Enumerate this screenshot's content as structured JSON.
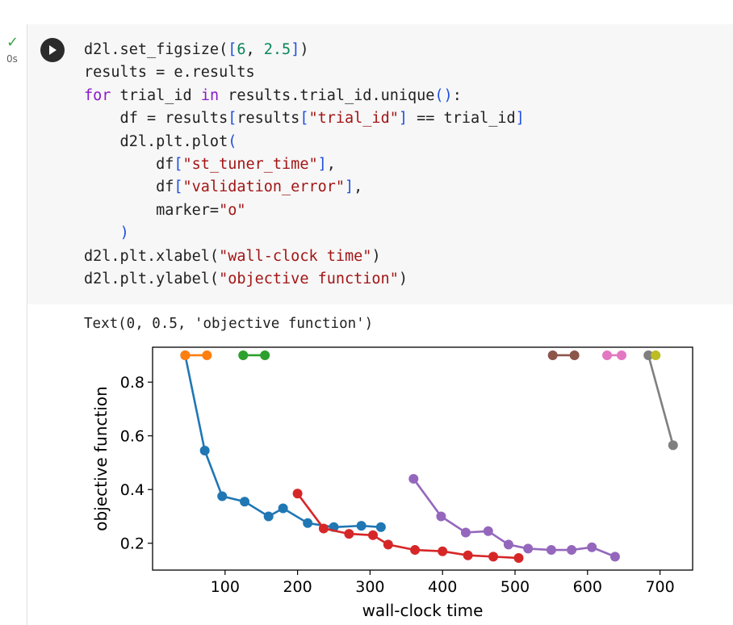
{
  "cell": {
    "status_icon": "check-icon",
    "exec_time": "0s",
    "run_icon": "play-icon",
    "code_lines": [
      [
        {
          "t": "d2l.set_figsize("
        },
        {
          "t": "[",
          "c": "br"
        },
        {
          "t": "6",
          "c": "num"
        },
        {
          "t": ", "
        },
        {
          "t": "2.5",
          "c": "num"
        },
        {
          "t": "]",
          "c": "br"
        },
        {
          "t": ")"
        }
      ],
      [
        {
          "t": "results = e.results"
        }
      ],
      [
        {
          "t": "for",
          "c": "kw"
        },
        {
          "t": " trial_id "
        },
        {
          "t": "in",
          "c": "kw"
        },
        {
          "t": " results.trial_id.unique"
        },
        {
          "t": "()",
          "c": "br"
        },
        {
          "t": ":"
        }
      ],
      [
        {
          "t": "    df = results"
        },
        {
          "t": "[",
          "c": "br"
        },
        {
          "t": "results"
        },
        {
          "t": "[",
          "c": "br"
        },
        {
          "t": "\"trial_id\"",
          "c": "str"
        },
        {
          "t": "]",
          "c": "br"
        },
        {
          "t": " == trial_id"
        },
        {
          "t": "]",
          "c": "br"
        }
      ],
      [
        {
          "t": "    d2l.plt.plot"
        },
        {
          "t": "(",
          "c": "br"
        }
      ],
      [
        {
          "t": "        df"
        },
        {
          "t": "[",
          "c": "br"
        },
        {
          "t": "\"st_tuner_time\"",
          "c": "str"
        },
        {
          "t": "]",
          "c": "br"
        },
        {
          "t": ","
        }
      ],
      [
        {
          "t": "        df"
        },
        {
          "t": "[",
          "c": "br"
        },
        {
          "t": "\"validation_error\"",
          "c": "str"
        },
        {
          "t": "]",
          "c": "br"
        },
        {
          "t": ","
        }
      ],
      [
        {
          "t": "        marker="
        },
        {
          "t": "\"o\"",
          "c": "str"
        }
      ],
      [
        {
          "t": "    "
        },
        {
          "t": ")",
          "c": "br"
        }
      ],
      [
        {
          "t": "d2l.plt.xlabel("
        },
        {
          "t": "\"wall-clock time\"",
          "c": "str"
        },
        {
          "t": ")"
        }
      ],
      [
        {
          "t": "d2l.plt.ylabel("
        },
        {
          "t": "\"objective function\"",
          "c": "str"
        },
        {
          "t": ")"
        }
      ]
    ],
    "output_text": "Text(0, 0.5, 'objective function')"
  },
  "chart_data": {
    "type": "line",
    "xlabel": "wall-clock time",
    "ylabel": "objective function",
    "xlim": [
      0,
      745
    ],
    "ylim": [
      0.1,
      0.93
    ],
    "xticks": [
      100,
      200,
      300,
      400,
      500,
      600,
      700
    ],
    "yticks": [
      0.2,
      0.4,
      0.6,
      0.8
    ],
    "grid": false,
    "marker": "o",
    "series": [
      {
        "color": "#1f77b4",
        "x": [
          45,
          72,
          96,
          127,
          160,
          180,
          214,
          250,
          288,
          315
        ],
        "y": [
          0.9,
          0.545,
          0.375,
          0.355,
          0.3,
          0.33,
          0.275,
          0.26,
          0.265,
          0.26
        ]
      },
      {
        "color": "#ff7f0e",
        "x": [
          45,
          75
        ],
        "y": [
          0.9,
          0.9
        ]
      },
      {
        "color": "#2ca02c",
        "x": [
          125,
          155
        ],
        "y": [
          0.9,
          0.9
        ]
      },
      {
        "color": "#d62728",
        "x": [
          200,
          236,
          271,
          304,
          325,
          362,
          400,
          435,
          470,
          505
        ],
        "y": [
          0.385,
          0.255,
          0.235,
          0.23,
          0.195,
          0.175,
          0.17,
          0.155,
          0.15,
          0.145
        ]
      },
      {
        "color": "#9467bd",
        "x": [
          360,
          398,
          432,
          463,
          491,
          518,
          550,
          578,
          606,
          638
        ],
        "y": [
          0.44,
          0.3,
          0.24,
          0.245,
          0.195,
          0.18,
          0.175,
          0.175,
          0.185,
          0.15
        ]
      },
      {
        "color": "#8c564b",
        "x": [
          552,
          582
        ],
        "y": [
          0.9,
          0.9
        ]
      },
      {
        "color": "#e377c2",
        "x": [
          627,
          647
        ],
        "y": [
          0.9,
          0.9
        ]
      },
      {
        "color": "#7f7f7f",
        "x": [
          684,
          718
        ],
        "y": [
          0.9,
          0.565
        ]
      },
      {
        "color": "#bcbd22",
        "x": [
          694
        ],
        "y": [
          0.9
        ]
      }
    ]
  }
}
